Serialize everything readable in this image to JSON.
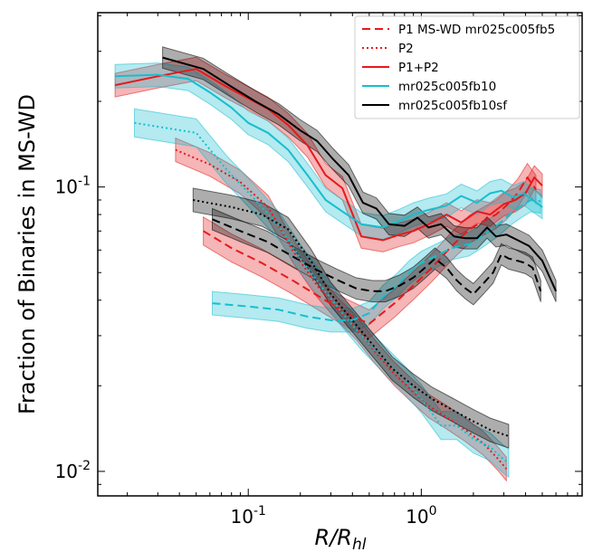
{
  "chart_data": {
    "type": "line",
    "xlabel": "R/R_hl",
    "ylabel": "Fraction of Binaries in MS-WD",
    "x_scale": "log",
    "y_scale": "log",
    "xlim": [
      0.0135,
      8.5
    ],
    "ylim": [
      0.0082,
      0.41
    ],
    "x_ticks": [
      {
        "value": 0.1,
        "label": "10^{-1}"
      },
      {
        "value": 1,
        "label": "10^{0}"
      }
    ],
    "y_ticks": [
      {
        "value": 0.01,
        "label": "10^{-2}"
      },
      {
        "value": 0.1,
        "label": "10^{-1}"
      }
    ],
    "legend_position": "top-right",
    "colors": {
      "red": "#e41a1c",
      "cyan": "#17becf",
      "black": "#000000"
    },
    "series": [
      {
        "name": "P1 MS-WD mr025c005fb5",
        "color": "#e41a1c",
        "linestyle": "dashed",
        "band_width": 1.12,
        "x": [
          0.055,
          0.08,
          0.12,
          0.18,
          0.26,
          0.37,
          0.5,
          0.7,
          0.9,
          1.15,
          1.5,
          1.9,
          2.3,
          2.7,
          3.1,
          3.6,
          4.1,
          4.6
        ],
        "y": [
          0.07,
          0.061,
          0.054,
          0.047,
          0.041,
          0.036,
          0.033,
          0.039,
          0.045,
          0.052,
          0.062,
          0.071,
          0.076,
          0.08,
          0.086,
          0.095,
          0.108,
          0.098
        ]
      },
      {
        "name": "",
        "color": "#17becf",
        "linestyle": "dashed",
        "band_width": 1.1,
        "x": [
          0.062,
          0.1,
          0.15,
          0.22,
          0.3,
          0.4,
          0.5,
          0.6,
          0.72,
          0.85,
          1.0,
          1.2,
          1.5,
          1.9,
          2.3,
          2.8,
          3.3,
          3.8,
          4.3,
          4.9
        ],
        "y": [
          0.039,
          0.038,
          0.037,
          0.035,
          0.034,
          0.034,
          0.036,
          0.041,
          0.045,
          0.05,
          0.054,
          0.057,
          0.061,
          0.063,
          0.068,
          0.074,
          0.081,
          0.086,
          0.09,
          0.089
        ]
      },
      {
        "name": "",
        "color": "#000000",
        "linestyle": "dashed",
        "band_width": 1.09,
        "x": [
          0.062,
          0.09,
          0.13,
          0.18,
          0.25,
          0.33,
          0.42,
          0.52,
          0.62,
          0.75,
          0.9,
          1.05,
          1.2,
          1.4,
          1.6,
          1.8,
          2.0,
          2.3,
          2.6,
          2.9,
          3.2,
          3.6,
          4.0,
          4.4,
          4.9
        ],
        "y": [
          0.077,
          0.07,
          0.064,
          0.057,
          0.051,
          0.047,
          0.044,
          0.043,
          0.043,
          0.045,
          0.048,
          0.052,
          0.056,
          0.052,
          0.047,
          0.044,
          0.042,
          0.046,
          0.05,
          0.058,
          0.056,
          0.055,
          0.054,
          0.052,
          0.043
        ]
      },
      {
        "name": "P2",
        "color": "#e41a1c",
        "linestyle": "dotted",
        "band_width": 1.1,
        "x": [
          0.038,
          0.06,
          0.09,
          0.13,
          0.18,
          0.25,
          0.33,
          0.42,
          0.55,
          0.7,
          0.9,
          1.1,
          1.4,
          1.8,
          2.3,
          2.8,
          3.1
        ],
        "y": [
          0.135,
          0.12,
          0.104,
          0.085,
          0.06,
          0.045,
          0.037,
          0.032,
          0.026,
          0.022,
          0.019,
          0.017,
          0.0155,
          0.014,
          0.0125,
          0.011,
          0.0102
        ]
      },
      {
        "name": "",
        "color": "#17becf",
        "linestyle": "dotted",
        "band_width": 1.12,
        "x": [
          0.022,
          0.05,
          0.075,
          0.11,
          0.15,
          0.2,
          0.27,
          0.35,
          0.45,
          0.6,
          0.8,
          1.0,
          1.3,
          1.6,
          2.0,
          2.5,
          2.9,
          3.2
        ],
        "y": [
          0.168,
          0.155,
          0.115,
          0.09,
          0.073,
          0.056,
          0.044,
          0.036,
          0.03,
          0.025,
          0.021,
          0.018,
          0.0145,
          0.0145,
          0.013,
          0.0122,
          0.0112,
          0.0107
        ]
      },
      {
        "name": "",
        "color": "#000000",
        "linestyle": "dotted",
        "band_width": 1.1,
        "x": [
          0.048,
          0.08,
          0.12,
          0.17,
          0.23,
          0.3,
          0.4,
          0.52,
          0.68,
          0.9,
          1.15,
          1.5,
          2.0,
          2.5,
          3.2
        ],
        "y": [
          0.09,
          0.085,
          0.08,
          0.071,
          0.055,
          0.042,
          0.034,
          0.028,
          0.023,
          0.02,
          0.018,
          0.0165,
          0.015,
          0.014,
          0.0133
        ]
      },
      {
        "name": "P1+P2",
        "color": "#e41a1c",
        "linestyle": "solid",
        "band_width": 1.1,
        "x": [
          0.017,
          0.03,
          0.05,
          0.075,
          0.1,
          0.13,
          0.17,
          0.22,
          0.28,
          0.35,
          0.45,
          0.6,
          0.75,
          0.9,
          1.1,
          1.4,
          1.7,
          2.1,
          2.5,
          3.0,
          3.5,
          4.0,
          4.5,
          5.0
        ],
        "y": [
          0.228,
          0.245,
          0.26,
          0.225,
          0.205,
          0.188,
          0.165,
          0.14,
          0.11,
          0.099,
          0.067,
          0.065,
          0.068,
          0.07,
          0.074,
          0.08,
          0.075,
          0.082,
          0.08,
          0.087,
          0.09,
          0.095,
          0.108,
          0.101
        ]
      },
      {
        "name": "mr025c005fb10",
        "color": "#17becf",
        "linestyle": "solid",
        "band_width": 1.1,
        "x": [
          0.017,
          0.03,
          0.045,
          0.06,
          0.08,
          0.1,
          0.13,
          0.17,
          0.22,
          0.28,
          0.35,
          0.45,
          0.6,
          0.75,
          0.9,
          1.1,
          1.4,
          1.7,
          2.1,
          2.5,
          2.9,
          3.4,
          3.9,
          4.4,
          5.0
        ],
        "y": [
          0.245,
          0.248,
          0.24,
          0.215,
          0.19,
          0.168,
          0.155,
          0.135,
          0.11,
          0.09,
          0.082,
          0.074,
          0.072,
          0.076,
          0.08,
          0.083,
          0.086,
          0.093,
          0.088,
          0.095,
          0.097,
          0.092,
          0.095,
          0.09,
          0.085
        ]
      },
      {
        "name": "mr025c005fb10sf",
        "color": "#000000",
        "linestyle": "solid",
        "band_width": 1.09,
        "x": [
          0.032,
          0.055,
          0.08,
          0.11,
          0.15,
          0.2,
          0.25,
          0.31,
          0.38,
          0.46,
          0.55,
          0.65,
          0.8,
          0.95,
          1.1,
          1.3,
          1.55,
          1.8,
          2.1,
          2.4,
          2.7,
          3.1,
          3.6,
          4.2,
          5.0,
          6.0
        ],
        "y": [
          0.285,
          0.26,
          0.225,
          0.2,
          0.18,
          0.158,
          0.145,
          0.125,
          0.11,
          0.088,
          0.084,
          0.074,
          0.073,
          0.078,
          0.072,
          0.074,
          0.067,
          0.066,
          0.066,
          0.072,
          0.067,
          0.068,
          0.065,
          0.062,
          0.055,
          0.043
        ]
      }
    ]
  }
}
